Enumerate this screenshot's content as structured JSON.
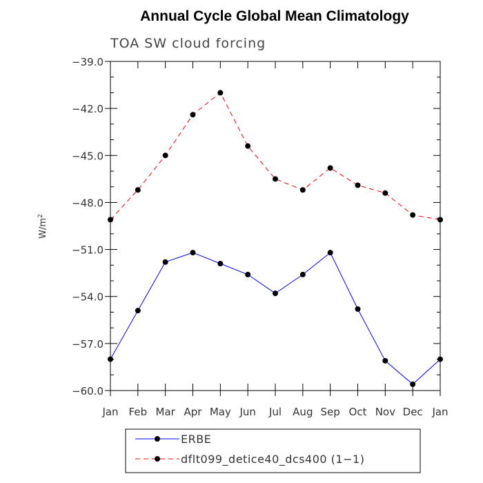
{
  "chart_data": {
    "type": "line",
    "title": "Annual Cycle Global Mean Climatology",
    "subtitle": "TOA SW cloud forcing",
    "ylabel": "W/m",
    "ylabel_superscript": "2",
    "ylim": [
      -60.0,
      -39.0
    ],
    "y_ticks": [
      -39.0,
      -42.0,
      -45.0,
      -48.0,
      -51.0,
      -54.0,
      -57.0,
      -60.0
    ],
    "y_tick_labels": [
      "−39.0",
      "−42.0",
      "−45.0",
      "−48.0",
      "−51.0",
      "−54.0",
      "−57.0",
      "−60.0"
    ],
    "y_minor_step": 1.0,
    "categories": [
      "Jan",
      "Feb",
      "Mar",
      "Apr",
      "May",
      "Jun",
      "Jul",
      "Aug",
      "Sep",
      "Oct",
      "Nov",
      "Dec",
      "Jan"
    ],
    "grid": false,
    "legend_position": "bottom",
    "series": [
      {
        "name": "ERBE",
        "color": "#0000ff",
        "dash": "solid",
        "values": [
          -58.0,
          -54.9,
          -51.8,
          -51.2,
          -51.9,
          -52.6,
          -53.8,
          -52.6,
          -51.2,
          -54.8,
          -58.1,
          -59.6,
          -58.0
        ]
      },
      {
        "name": "dflt099_detice40_dcs400 (1−1)",
        "color": "#ff0000",
        "dash": "dashed",
        "values": [
          -49.1,
          -47.2,
          -45.0,
          -42.4,
          -41.0,
          -44.4,
          -46.5,
          -47.2,
          -45.8,
          -46.9,
          -47.4,
          -48.8,
          -49.1
        ]
      }
    ]
  }
}
